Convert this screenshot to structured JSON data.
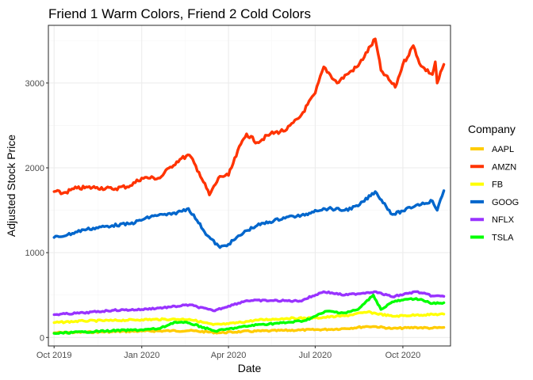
{
  "chart_data": {
    "type": "line",
    "title": "Friend 1 Warm Colors, Friend 2 Cold Colors",
    "xlabel": "Date",
    "ylabel": "Adjusted Stock Price",
    "xlim": [
      "2019-09-25",
      "2020-11-20"
    ],
    "ylim": [
      -100,
      3680
    ],
    "x_ticks": [
      {
        "date": "2019-10-01",
        "label": "Oct 2019"
      },
      {
        "date": "2020-01-01",
        "label": "Jan 2020"
      },
      {
        "date": "2020-04-01",
        "label": "Apr 2020"
      },
      {
        "date": "2020-07-01",
        "label": "Jul 2020"
      },
      {
        "date": "2020-10-01",
        "label": "Oct 2020"
      }
    ],
    "y_ticks": [
      0,
      1000,
      2000,
      3000
    ],
    "grid": true,
    "legend": {
      "title": "Company",
      "position": "right"
    },
    "series": [
      {
        "name": "AAPL",
        "color": "#ffcc00",
        "points": [
          [
            "2019-10-01",
            55
          ],
          [
            "2019-11-01",
            62
          ],
          [
            "2019-12-01",
            68
          ],
          [
            "2020-01-01",
            75
          ],
          [
            "2020-02-01",
            78
          ],
          [
            "2020-02-20",
            80
          ],
          [
            "2020-03-23",
            55
          ],
          [
            "2020-04-15",
            70
          ],
          [
            "2020-05-15",
            78
          ],
          [
            "2020-06-15",
            88
          ],
          [
            "2020-07-15",
            95
          ],
          [
            "2020-08-01",
            105
          ],
          [
            "2020-08-25",
            130
          ],
          [
            "2020-09-03",
            128
          ],
          [
            "2020-09-20",
            105
          ],
          [
            "2020-10-15",
            118
          ],
          [
            "2020-11-01",
            110
          ],
          [
            "2020-11-13",
            118
          ]
        ]
      },
      {
        "name": "AMZN",
        "color": "#ff3300",
        "points": [
          [
            "2019-10-01",
            1720
          ],
          [
            "2019-10-10",
            1700
          ],
          [
            "2019-10-25",
            1760
          ],
          [
            "2019-11-15",
            1770
          ],
          [
            "2019-12-01",
            1750
          ],
          [
            "2019-12-20",
            1790
          ],
          [
            "2020-01-01",
            1880
          ],
          [
            "2020-01-20",
            1880
          ],
          [
            "2020-01-31",
            2010
          ],
          [
            "2020-02-10",
            2100
          ],
          [
            "2020-02-20",
            2150
          ],
          [
            "2020-03-01",
            1950
          ],
          [
            "2020-03-12",
            1680
          ],
          [
            "2020-03-23",
            1900
          ],
          [
            "2020-04-01",
            1910
          ],
          [
            "2020-04-14",
            2280
          ],
          [
            "2020-04-20",
            2400
          ],
          [
            "2020-05-01",
            2300
          ],
          [
            "2020-05-15",
            2400
          ],
          [
            "2020-06-01",
            2450
          ],
          [
            "2020-06-15",
            2600
          ],
          [
            "2020-07-01",
            2880
          ],
          [
            "2020-07-10",
            3190
          ],
          [
            "2020-07-24",
            3000
          ],
          [
            "2020-08-03",
            3100
          ],
          [
            "2020-08-15",
            3200
          ],
          [
            "2020-09-02",
            3520
          ],
          [
            "2020-09-08",
            3150
          ],
          [
            "2020-09-23",
            2950
          ],
          [
            "2020-10-01",
            3220
          ],
          [
            "2020-10-12",
            3440
          ],
          [
            "2020-10-20",
            3200
          ],
          [
            "2020-11-01",
            3100
          ],
          [
            "2020-11-04",
            3250
          ],
          [
            "2020-11-06",
            3000
          ],
          [
            "2020-11-13",
            3220
          ]
        ]
      },
      {
        "name": "FB",
        "color": "#ffff00",
        "points": [
          [
            "2019-10-01",
            175
          ],
          [
            "2019-11-01",
            195
          ],
          [
            "2019-12-01",
            200
          ],
          [
            "2020-01-01",
            210
          ],
          [
            "2020-02-01",
            215
          ],
          [
            "2020-02-20",
            215
          ],
          [
            "2020-03-16",
            150
          ],
          [
            "2020-04-01",
            160
          ],
          [
            "2020-05-01",
            205
          ],
          [
            "2020-06-01",
            225
          ],
          [
            "2020-07-01",
            230
          ],
          [
            "2020-08-01",
            255
          ],
          [
            "2020-08-25",
            300
          ],
          [
            "2020-09-20",
            250
          ],
          [
            "2020-10-15",
            265
          ],
          [
            "2020-11-13",
            275
          ]
        ]
      },
      {
        "name": "GOOG",
        "color": "#0066cc",
        "points": [
          [
            "2019-10-01",
            1180
          ],
          [
            "2019-10-15",
            1210
          ],
          [
            "2019-11-01",
            1270
          ],
          [
            "2019-12-01",
            1320
          ],
          [
            "2019-12-20",
            1340
          ],
          [
            "2020-01-15",
            1440
          ],
          [
            "2020-02-01",
            1450
          ],
          [
            "2020-02-19",
            1520
          ],
          [
            "2020-02-28",
            1380
          ],
          [
            "2020-03-10",
            1200
          ],
          [
            "2020-03-23",
            1060
          ],
          [
            "2020-04-01",
            1100
          ],
          [
            "2020-04-20",
            1260
          ],
          [
            "2020-05-01",
            1320
          ],
          [
            "2020-06-01",
            1420
          ],
          [
            "2020-06-20",
            1440
          ],
          [
            "2020-07-01",
            1500
          ],
          [
            "2020-07-15",
            1520
          ],
          [
            "2020-08-01",
            1500
          ],
          [
            "2020-08-15",
            1550
          ],
          [
            "2020-09-02",
            1720
          ],
          [
            "2020-09-20",
            1450
          ],
          [
            "2020-10-01",
            1490
          ],
          [
            "2020-10-15",
            1560
          ],
          [
            "2020-11-01",
            1610
          ],
          [
            "2020-11-06",
            1500
          ],
          [
            "2020-11-13",
            1730
          ]
        ]
      },
      {
        "name": "NFLX",
        "color": "#9933ff",
        "points": [
          [
            "2019-10-01",
            270
          ],
          [
            "2019-11-01",
            290
          ],
          [
            "2019-12-01",
            320
          ],
          [
            "2020-01-01",
            330
          ],
          [
            "2020-02-01",
            360
          ],
          [
            "2020-02-20",
            385
          ],
          [
            "2020-03-16",
            315
          ],
          [
            "2020-04-01",
            370
          ],
          [
            "2020-04-20",
            435
          ],
          [
            "2020-05-15",
            435
          ],
          [
            "2020-06-15",
            430
          ],
          [
            "2020-07-10",
            540
          ],
          [
            "2020-08-01",
            500
          ],
          [
            "2020-09-01",
            540
          ],
          [
            "2020-09-20",
            480
          ],
          [
            "2020-10-15",
            540
          ],
          [
            "2020-11-01",
            490
          ],
          [
            "2020-11-13",
            485
          ]
        ]
      },
      {
        "name": "TSLA",
        "color": "#00ff00",
        "points": [
          [
            "2019-10-01",
            48
          ],
          [
            "2019-11-01",
            65
          ],
          [
            "2019-12-01",
            80
          ],
          [
            "2020-01-01",
            90
          ],
          [
            "2020-01-20",
            105
          ],
          [
            "2020-02-04",
            180
          ],
          [
            "2020-02-20",
            170
          ],
          [
            "2020-03-18",
            75
          ],
          [
            "2020-04-01",
            100
          ],
          [
            "2020-05-01",
            150
          ],
          [
            "2020-06-01",
            175
          ],
          [
            "2020-06-20",
            200
          ],
          [
            "2020-07-01",
            250
          ],
          [
            "2020-07-13",
            310
          ],
          [
            "2020-08-01",
            290
          ],
          [
            "2020-08-15",
            330
          ],
          [
            "2020-08-31",
            500
          ],
          [
            "2020-09-08",
            330
          ],
          [
            "2020-09-20",
            420
          ],
          [
            "2020-10-01",
            440
          ],
          [
            "2020-10-15",
            460
          ],
          [
            "2020-11-01",
            400
          ],
          [
            "2020-11-13",
            410
          ]
        ]
      }
    ],
    "legend_order": [
      "AAPL",
      "AMZN",
      "FB",
      "GOOG",
      "NFLX",
      "TSLA"
    ]
  }
}
